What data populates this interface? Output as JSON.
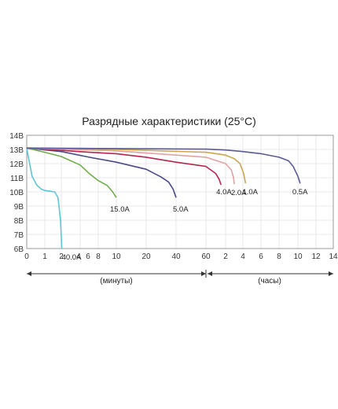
{
  "chart_data": {
    "type": "line",
    "title": "Разрядные характеристики (25°C)",
    "ylabel": "",
    "xlabel": "",
    "ylim": [
      6,
      14
    ],
    "y_ticks": [
      "6В",
      "7В",
      "8В",
      "9В",
      "10В",
      "11В",
      "12В",
      "13В",
      "14В"
    ],
    "x_segments": [
      {
        "unit_label": "(минуты)",
        "ticks": [
          "0",
          "1",
          "2",
          "4",
          "6",
          "8",
          "10",
          "20",
          "40",
          "60"
        ]
      },
      {
        "unit_label": "(часы)",
        "ticks": [
          "2",
          "4",
          "6",
          "8",
          "10",
          "12",
          "14"
        ]
      }
    ],
    "grid": true,
    "x_note": "x values are time from discharge start in minutes",
    "series": [
      {
        "name": "40.0A",
        "color": "#5fc4d6",
        "x": [
          0,
          0.1,
          0.3,
          0.55,
          0.8,
          1,
          1.3,
          1.6,
          1.8,
          1.95,
          2.0,
          2.05
        ],
        "y": [
          13.1,
          12.4,
          11.1,
          10.5,
          10.2,
          10.1,
          10.05,
          10.0,
          9.6,
          8.0,
          6.8,
          6.0
        ]
      },
      {
        "name": "15.0A",
        "color": "#6fae4a",
        "x": [
          0,
          1,
          2,
          4,
          6,
          8,
          9,
          9.6,
          10
        ],
        "y": [
          13.1,
          12.8,
          12.5,
          11.9,
          11.3,
          10.8,
          10.45,
          10.0,
          9.6
        ]
      },
      {
        "name": "5.0A",
        "color": "#4a4a86",
        "x": [
          0,
          2,
          6,
          10,
          20,
          30,
          35,
          38,
          40
        ],
        "y": [
          13.1,
          12.85,
          12.45,
          12.1,
          11.6,
          11.05,
          10.7,
          10.2,
          9.6
        ]
      },
      {
        "name": "4.0A",
        "color": "#b2284f",
        "x": [
          0,
          6,
          10,
          20,
          40,
          60,
          90,
          100,
          106
        ],
        "y": [
          13.1,
          12.8,
          12.7,
          12.45,
          12.1,
          11.8,
          11.3,
          10.9,
          10.5
        ]
      },
      {
        "name": "2.0A",
        "color": "#e0a3a3",
        "x": [
          0,
          10,
          40,
          60,
          120,
          160,
          175,
          180
        ],
        "y": [
          13.1,
          12.9,
          12.6,
          12.45,
          12.0,
          11.55,
          11.0,
          10.55
        ]
      },
      {
        "name": "1.0A",
        "color": "#c9a64f",
        "x": [
          0,
          10,
          60,
          120,
          180,
          220,
          245,
          258
        ],
        "y": [
          13.1,
          13.0,
          12.8,
          12.6,
          12.35,
          12.0,
          11.3,
          10.6
        ]
      },
      {
        "name": "0.5A",
        "color": "#5a5a94",
        "x": [
          0,
          60,
          120,
          240,
          360,
          480,
          540,
          570,
          600,
          615
        ],
        "y": [
          13.1,
          13.02,
          12.96,
          12.85,
          12.7,
          12.45,
          12.2,
          11.8,
          11.1,
          10.6
        ]
      }
    ]
  }
}
